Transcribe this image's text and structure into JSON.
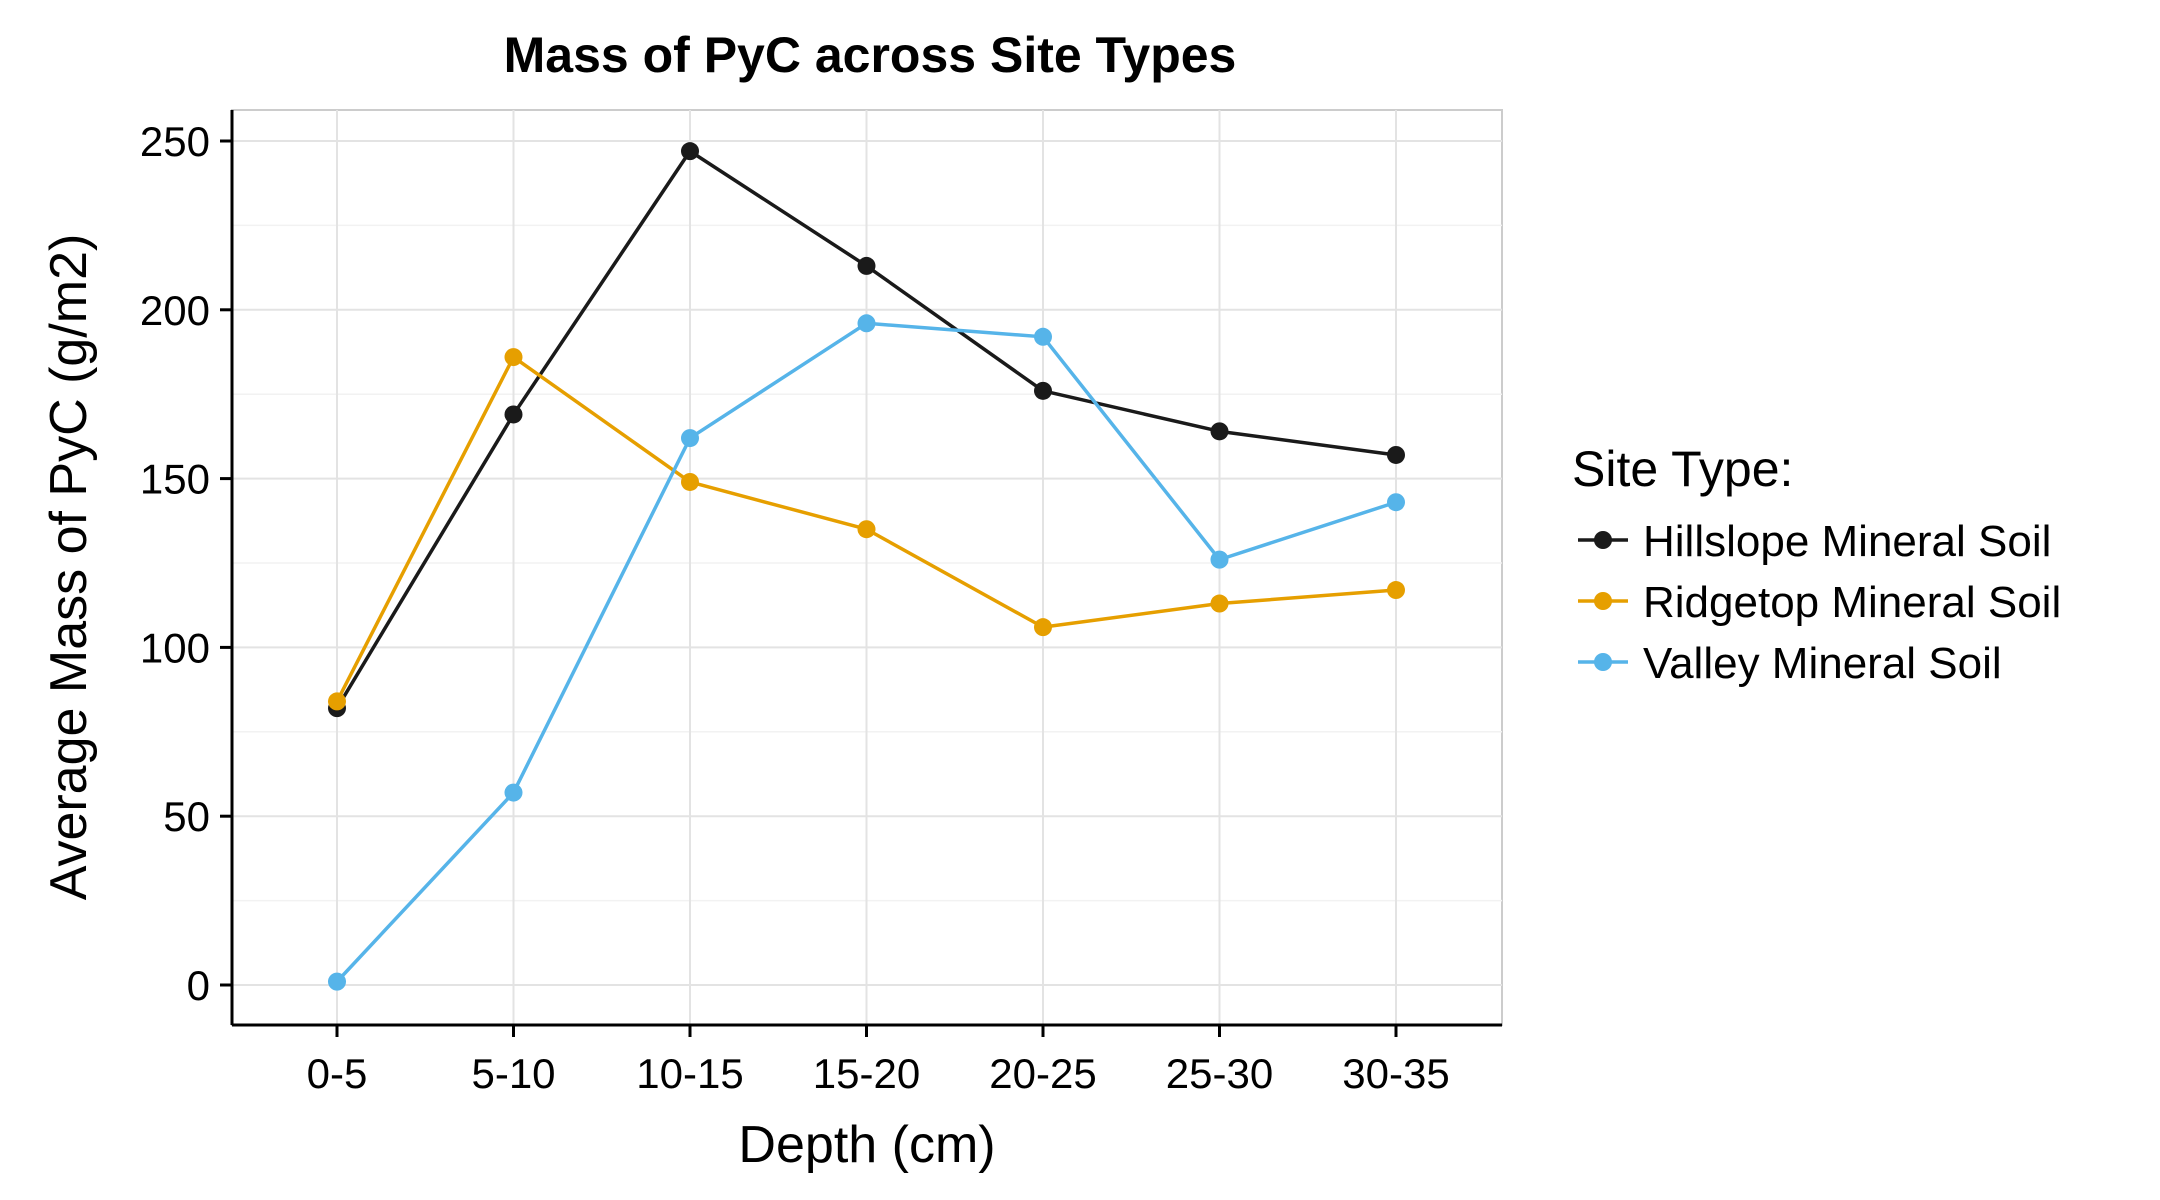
{
  "chart_data": {
    "type": "line",
    "title": "Mass of PyC across Site Types",
    "xlabel": "Depth (cm)",
    "ylabel": "Average Mass of PyC (g/m2)",
    "categories": [
      "0-5",
      "5-10",
      "10-15",
      "15-20",
      "20-25",
      "25-30",
      "30-35"
    ],
    "ylim": [
      -12,
      260
    ],
    "yticks": [
      0,
      50,
      100,
      150,
      200,
      250
    ],
    "ytick_labels": [
      "0",
      "50",
      "100",
      "150",
      "200",
      "250"
    ],
    "grid": true,
    "legend": {
      "title": "Site Type:",
      "placement": "right"
    },
    "series": [
      {
        "name": "Hillslope Mineral Soil",
        "color": "#1a1a1a",
        "values": [
          82,
          169,
          247,
          213,
          176,
          164,
          157
        ]
      },
      {
        "name": "Ridgetop Mineral Soil",
        "color": "#e69f00",
        "values": [
          84,
          186,
          149,
          135,
          106,
          113,
          117
        ]
      },
      {
        "name": "Valley Mineral Soil",
        "color": "#56b4e9",
        "values": [
          1,
          57,
          162,
          196,
          192,
          126,
          143
        ]
      }
    ]
  }
}
